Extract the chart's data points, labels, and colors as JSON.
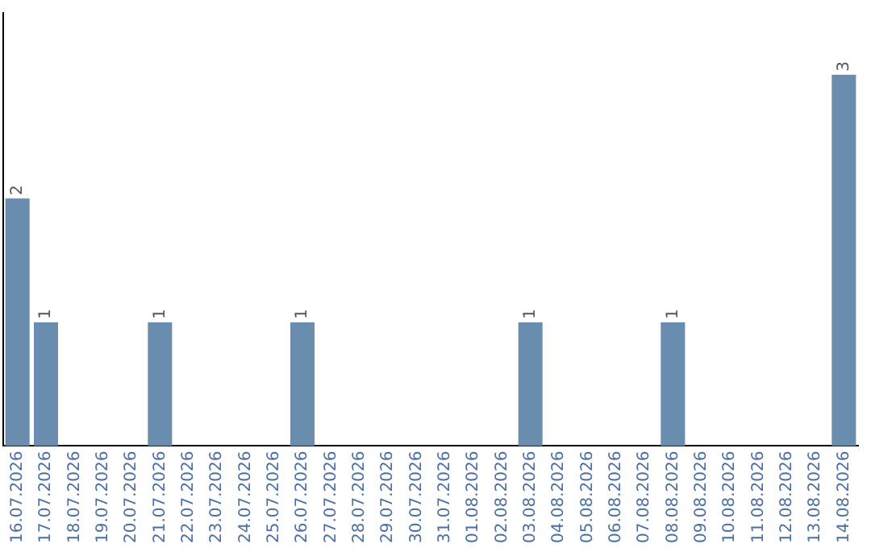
{
  "chart_data": {
    "type": "bar",
    "categories": [
      "16.07.2026",
      "17.07.2026",
      "18.07.2026",
      "19.07.2026",
      "20.07.2026",
      "21.07.2026",
      "22.07.2026",
      "23.07.2026",
      "24.07.2026",
      "25.07.2026",
      "26.07.2026",
      "27.07.2026",
      "28.07.2026",
      "29.07.2026",
      "30.07.2026",
      "31.07.2026",
      "01.08.2026",
      "02.08.2026",
      "03.08.2026",
      "04.08.2026",
      "05.08.2026",
      "06.08.2026",
      "07.08.2026",
      "08.08.2026",
      "09.08.2026",
      "10.08.2026",
      "11.08.2026",
      "12.08.2026",
      "13.08.2026",
      "14.08.2026"
    ],
    "values": [
      2,
      1,
      0,
      0,
      0,
      1,
      0,
      0,
      0,
      0,
      1,
      0,
      0,
      0,
      0,
      0,
      0,
      0,
      1,
      0,
      0,
      0,
      0,
      1,
      0,
      0,
      0,
      0,
      0,
      3
    ],
    "value_labels": [
      "2",
      "1",
      null,
      null,
      null,
      "1",
      null,
      null,
      null,
      null,
      "1",
      null,
      null,
      null,
      null,
      null,
      null,
      null,
      "1",
      null,
      null,
      null,
      null,
      "1",
      null,
      null,
      null,
      null,
      null,
      "3"
    ],
    "color": "#6a8caf",
    "grid": false,
    "legend": false,
    "tick_labels": "x"
  }
}
